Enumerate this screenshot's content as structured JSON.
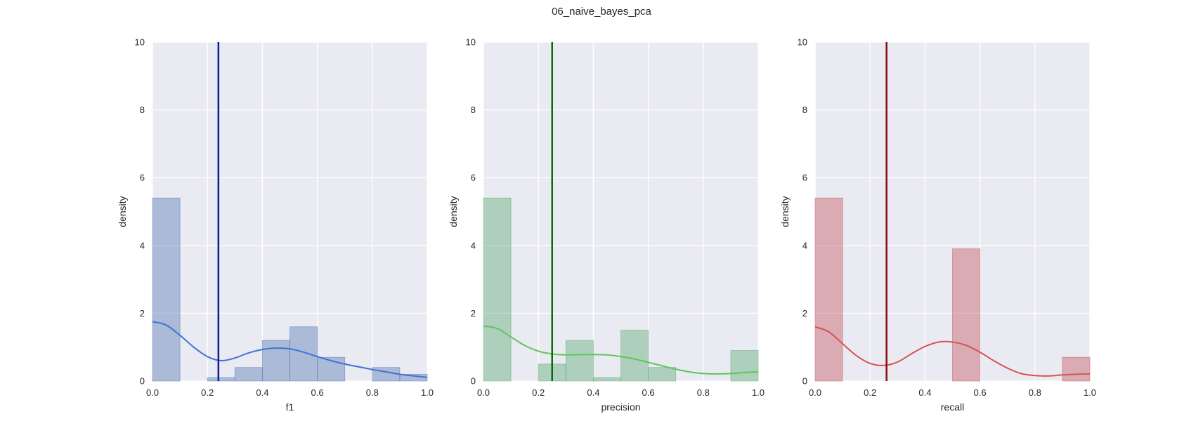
{
  "figure": {
    "suptitle": "06_naive_bayes_pca"
  },
  "chart_data": [
    {
      "type": "bar",
      "xlabel": "f1",
      "ylabel": "density",
      "xlim": [
        0,
        1
      ],
      "ylim": [
        0,
        10
      ],
      "xticks": [
        "0.0",
        "0.2",
        "0.4",
        "0.6",
        "0.8",
        "1.0"
      ],
      "yticks": [
        "0",
        "2",
        "4",
        "6",
        "8",
        "10"
      ],
      "grid": true,
      "bins": [
        [
          0.0,
          0.1
        ],
        [
          0.1,
          0.2
        ],
        [
          0.2,
          0.3
        ],
        [
          0.3,
          0.4
        ],
        [
          0.4,
          0.5
        ],
        [
          0.5,
          0.6
        ],
        [
          0.6,
          0.7
        ],
        [
          0.7,
          0.8
        ],
        [
          0.8,
          0.9
        ],
        [
          0.9,
          1.0
        ]
      ],
      "values": [
        5.4,
        0.0,
        0.1,
        0.4,
        1.2,
        1.6,
        0.7,
        0.0,
        0.4,
        0.2
      ],
      "kde": {
        "x": [
          0.0,
          0.05,
          0.1,
          0.15,
          0.2,
          0.25,
          0.3,
          0.35,
          0.4,
          0.45,
          0.5,
          0.55,
          0.6,
          0.65,
          0.7,
          0.75,
          0.8,
          0.85,
          0.9,
          0.95,
          1.0
        ],
        "y": [
          1.75,
          1.65,
          1.35,
          1.0,
          0.72,
          0.6,
          0.68,
          0.83,
          0.93,
          0.97,
          0.95,
          0.85,
          0.72,
          0.6,
          0.5,
          0.42,
          0.34,
          0.27,
          0.2,
          0.15,
          0.11
        ]
      },
      "vline": 0.24,
      "colors": {
        "bar": "#4c72b0",
        "kde": "#3f73d6",
        "vline": "#0a1f8f"
      }
    },
    {
      "type": "bar",
      "xlabel": "precision",
      "ylabel": "density",
      "xlim": [
        0,
        1
      ],
      "ylim": [
        0,
        10
      ],
      "xticks": [
        "0.0",
        "0.2",
        "0.4",
        "0.6",
        "0.8",
        "1.0"
      ],
      "yticks": [
        "0",
        "2",
        "4",
        "6",
        "8",
        "10"
      ],
      "grid": true,
      "bins": [
        [
          0.0,
          0.1
        ],
        [
          0.1,
          0.2
        ],
        [
          0.2,
          0.3
        ],
        [
          0.3,
          0.4
        ],
        [
          0.4,
          0.5
        ],
        [
          0.5,
          0.6
        ],
        [
          0.6,
          0.7
        ],
        [
          0.7,
          0.8
        ],
        [
          0.8,
          0.9
        ],
        [
          0.9,
          1.0
        ]
      ],
      "values": [
        5.4,
        0.0,
        0.5,
        1.2,
        0.1,
        1.5,
        0.4,
        0.0,
        0.0,
        0.9
      ],
      "kde": {
        "x": [
          0.0,
          0.05,
          0.1,
          0.15,
          0.2,
          0.25,
          0.3,
          0.35,
          0.4,
          0.45,
          0.5,
          0.55,
          0.6,
          0.65,
          0.7,
          0.75,
          0.8,
          0.85,
          0.9,
          0.95,
          1.0
        ],
        "y": [
          1.62,
          1.55,
          1.3,
          1.05,
          0.88,
          0.8,
          0.77,
          0.78,
          0.78,
          0.77,
          0.72,
          0.65,
          0.55,
          0.45,
          0.35,
          0.27,
          0.22,
          0.21,
          0.22,
          0.25,
          0.27
        ]
      },
      "vline": 0.25,
      "colors": {
        "bar": "#55a868",
        "kde": "#5dc75a",
        "vline": "#0b6b0b"
      }
    },
    {
      "type": "bar",
      "xlabel": "recall",
      "ylabel": "density",
      "xlim": [
        0,
        1
      ],
      "ylim": [
        0,
        10
      ],
      "xticks": [
        "0.0",
        "0.2",
        "0.4",
        "0.6",
        "0.8",
        "1.0"
      ],
      "yticks": [
        "0",
        "2",
        "4",
        "6",
        "8",
        "10"
      ],
      "grid": true,
      "bins": [
        [
          0.0,
          0.1
        ],
        [
          0.1,
          0.2
        ],
        [
          0.2,
          0.3
        ],
        [
          0.3,
          0.4
        ],
        [
          0.4,
          0.5
        ],
        [
          0.5,
          0.6
        ],
        [
          0.6,
          0.7
        ],
        [
          0.7,
          0.8
        ],
        [
          0.8,
          0.9
        ],
        [
          0.9,
          1.0
        ]
      ],
      "values": [
        5.4,
        0.0,
        0.0,
        0.0,
        0.0,
        3.9,
        0.0,
        0.0,
        0.0,
        0.7
      ],
      "kde": {
        "x": [
          0.0,
          0.05,
          0.1,
          0.15,
          0.2,
          0.25,
          0.3,
          0.35,
          0.4,
          0.45,
          0.5,
          0.55,
          0.6,
          0.65,
          0.7,
          0.75,
          0.8,
          0.85,
          0.9,
          0.95,
          1.0
        ],
        "y": [
          1.6,
          1.45,
          1.1,
          0.75,
          0.52,
          0.46,
          0.56,
          0.8,
          1.02,
          1.15,
          1.15,
          1.05,
          0.85,
          0.6,
          0.38,
          0.22,
          0.16,
          0.15,
          0.18,
          0.2,
          0.21
        ]
      },
      "vline": 0.26,
      "colors": {
        "bar": "#c44e52",
        "kde": "#d65353",
        "vline": "#8b0e0e"
      }
    }
  ]
}
